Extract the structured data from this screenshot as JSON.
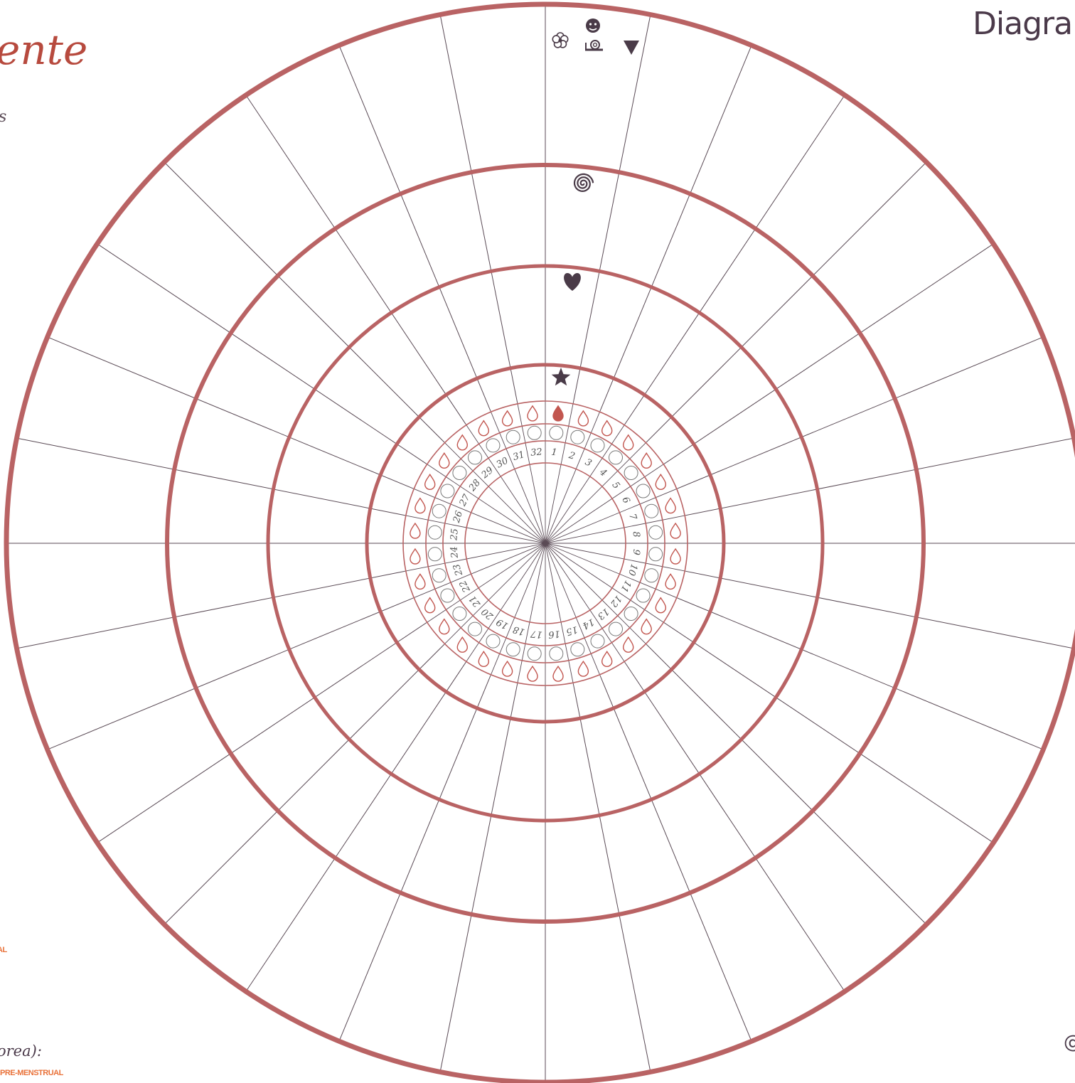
{
  "header": {
    "title_fragment": "Diagra",
    "script_fragment": "ente",
    "corner_glyph_right": "@"
  },
  "left_fragments": {
    "top_letter": "s",
    "mid_label": "AL",
    "bottom_script": "orea):",
    "bottom_caps": "PRE-MENSTRUAL"
  },
  "wheel": {
    "days": [
      "1",
      "2",
      "3",
      "4",
      "5",
      "6",
      "7",
      "8",
      "9",
      "10",
      "11",
      "12",
      "13",
      "14",
      "15",
      "16",
      "17",
      "18",
      "19",
      "20",
      "21",
      "22",
      "23",
      "24",
      "25",
      "26",
      "27",
      "28",
      "29",
      "30",
      "31",
      "32"
    ],
    "filled_drop_days": [
      "1"
    ]
  },
  "ring_icons": {
    "outer": [
      "flower-icon",
      "smiley-snail-icon",
      "triangle-down-icon"
    ],
    "third": "spiral-icon",
    "second": "heart-icon",
    "first": "star-icon"
  },
  "colors": {
    "ring": "#b96364",
    "spoke": "#5a4a55",
    "icon": "#4a3b48",
    "drop": "#c2564f",
    "caps": "#e9723a",
    "title": "#4b3a4a"
  }
}
